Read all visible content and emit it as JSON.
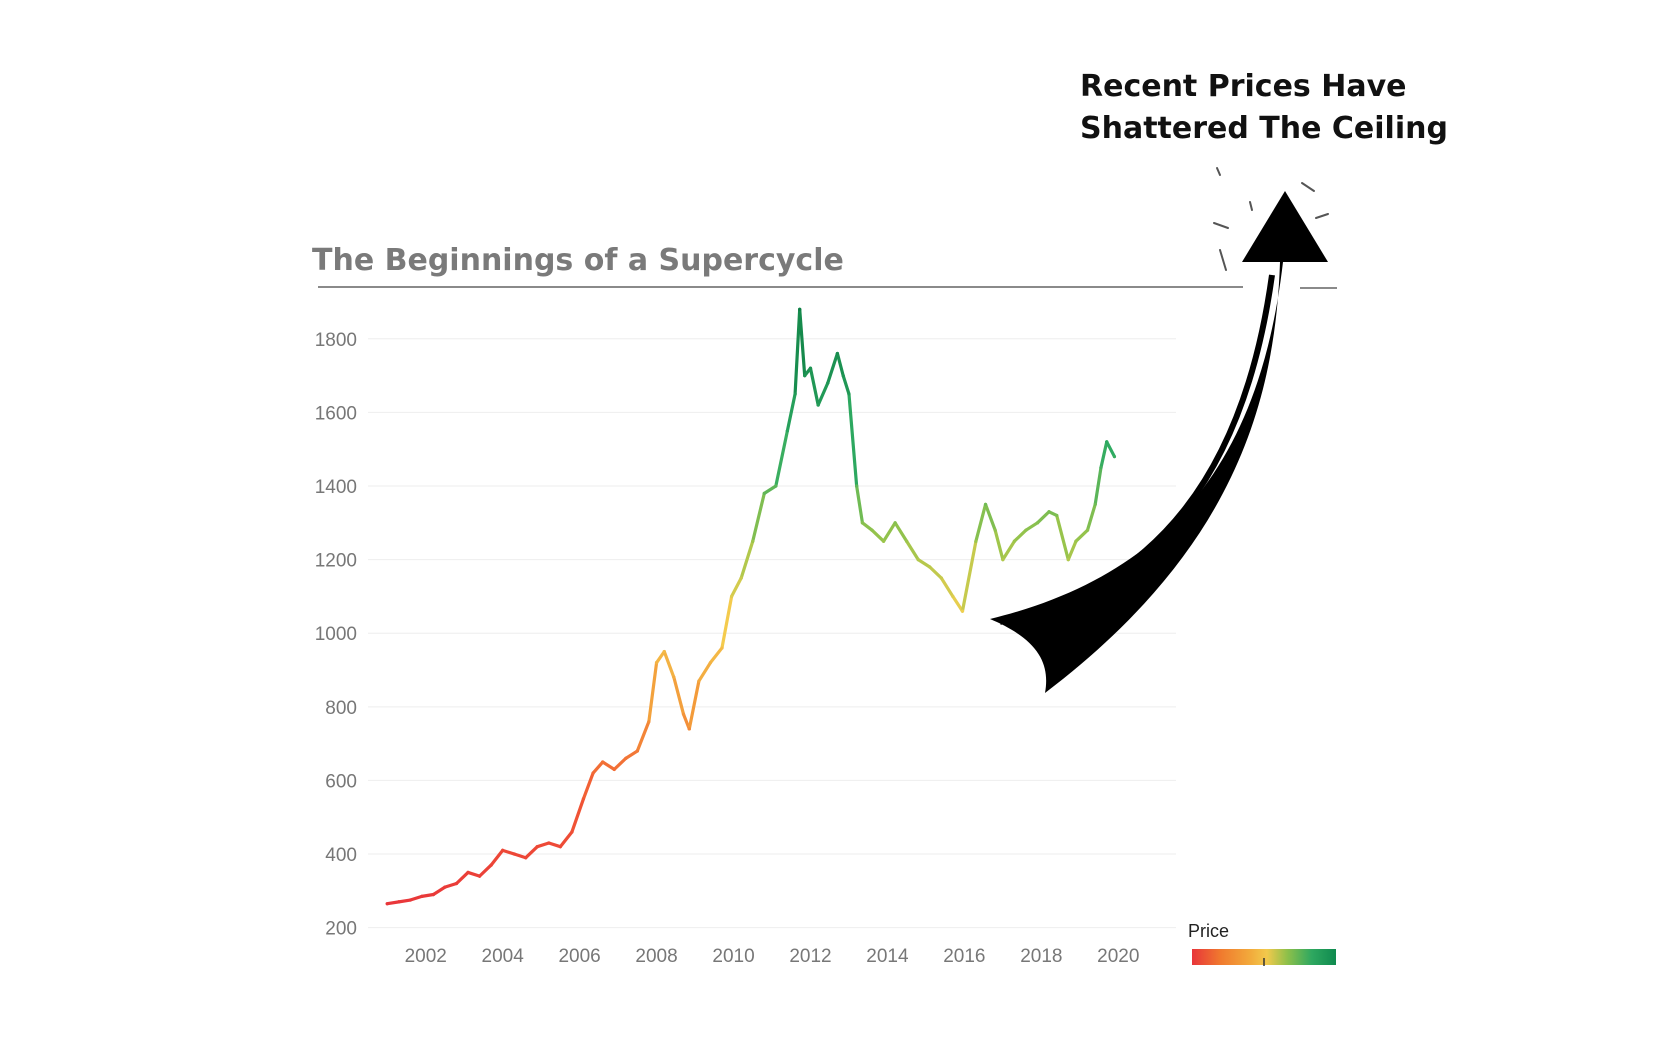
{
  "chart_data": {
    "type": "line",
    "title": "The Beginnings of a Supercycle",
    "annotation": {
      "line1": "Recent Prices Have",
      "line2": "Shattered The Ceiling"
    },
    "xlabel": "",
    "ylabel": "",
    "x_ticks": [
      "2002",
      "2004",
      "2006",
      "2008",
      "2010",
      "2012",
      "2014",
      "2016",
      "2018",
      "2020"
    ],
    "y_ticks": [
      "200",
      "400",
      "600",
      "800",
      "1000",
      "1200",
      "1400",
      "1600",
      "1800"
    ],
    "xlim": [
      2000.5,
      2021.5
    ],
    "ylim": [
      180,
      1900
    ],
    "grid": true,
    "legend": {
      "title": "Price",
      "placement": "bottom-right",
      "colors": [
        "#e8353a",
        "#f07a2e",
        "#f2a93b",
        "#f2c94c",
        "#8fc04a",
        "#2fa860",
        "#0f8a4f"
      ]
    },
    "color_scale": {
      "min": 250,
      "max": 1900,
      "stops": [
        {
          "value": 250,
          "color": "#e8353a"
        },
        {
          "value": 560,
          "color": "#f25a34"
        },
        {
          "value": 800,
          "color": "#f39a3a"
        },
        {
          "value": 1050,
          "color": "#f4cf4f"
        },
        {
          "value": 1250,
          "color": "#9cc54b"
        },
        {
          "value": 1500,
          "color": "#2fab62"
        },
        {
          "value": 1900,
          "color": "#0c7d44"
        }
      ]
    },
    "series": [
      {
        "x": [
          2001.0,
          2001.3,
          2001.6,
          2001.9,
          2002.2,
          2002.5,
          2002.8,
          2003.1,
          2003.4,
          2003.7,
          2004.0,
          2004.3,
          2004.6,
          2004.9,
          2005.2,
          2005.5,
          2005.8,
          2006.1,
          2006.35,
          2006.6,
          2006.9,
          2007.2,
          2007.5,
          2007.8,
          2008.0,
          2008.2,
          2008.45,
          2008.7,
          2008.85,
          2009.1,
          2009.4,
          2009.7,
          2009.95,
          2010.2,
          2010.5,
          2010.8,
          2011.1,
          2011.4,
          2011.6,
          2011.72,
          2011.85,
          2012.0,
          2012.2,
          2012.45,
          2012.7,
          2012.85,
          2013.0,
          2013.2,
          2013.35,
          2013.6,
          2013.9,
          2014.2,
          2014.5,
          2014.8,
          2015.1,
          2015.4,
          2015.7,
          2015.95,
          2016.3,
          2016.55,
          2016.8,
          2017.0,
          2017.3,
          2017.6,
          2017.9,
          2018.2,
          2018.4,
          2018.7,
          2018.9,
          2019.2,
          2019.4,
          2019.55,
          2019.7,
          2019.9
        ],
        "y": [
          265,
          270,
          275,
          285,
          290,
          310,
          320,
          350,
          340,
          370,
          410,
          400,
          390,
          420,
          430,
          420,
          460,
          550,
          620,
          650,
          630,
          660,
          680,
          760,
          920,
          950,
          880,
          780,
          740,
          870,
          920,
          960,
          1100,
          1150,
          1250,
          1380,
          1400,
          1550,
          1650,
          1880,
          1700,
          1720,
          1620,
          1680,
          1760,
          1700,
          1650,
          1400,
          1300,
          1280,
          1250,
          1300,
          1250,
          1200,
          1180,
          1150,
          1100,
          1060,
          1250,
          1350,
          1280,
          1200,
          1250,
          1280,
          1300,
          1330,
          1320,
          1200,
          1250,
          1280,
          1350,
          1450,
          1520,
          1480
        ]
      }
    ]
  }
}
